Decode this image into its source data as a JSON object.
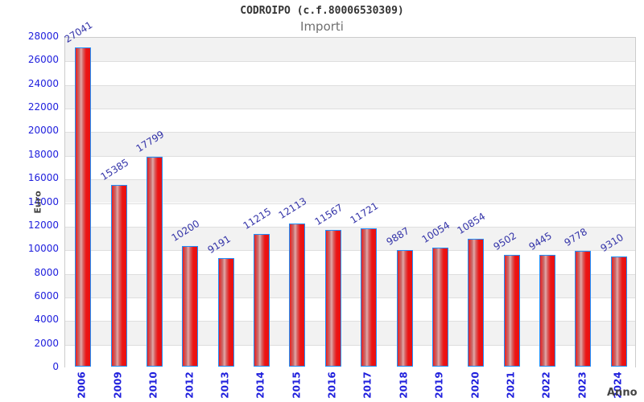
{
  "chart_data": {
    "type": "bar",
    "title": "CODROIPO (c.f.80006530309)",
    "subtitle": "Importi",
    "xlabel": "Anno",
    "ylabel": "Euro",
    "categories": [
      "2006",
      "2009",
      "2010",
      "2012",
      "2013",
      "2014",
      "2015",
      "2016",
      "2017",
      "2018",
      "2019",
      "2020",
      "2021",
      "2022",
      "2023",
      "2024"
    ],
    "values": [
      27041,
      15385,
      17799,
      10200,
      9191,
      11215,
      12113,
      11567,
      11721,
      9887,
      10054,
      10854,
      9502,
      9445,
      9778,
      9310
    ],
    "ylim": [
      0,
      28000
    ],
    "ytick_step": 2000,
    "grid": "horizontal alternating bands",
    "legend": "none",
    "colors": {
      "bar_fill": "#ee1515",
      "bar_highlight": "#e3a8a8",
      "bar_border": "#1e90ff",
      "axis_tick_label": "#2020dd",
      "value_label": "#3333a8",
      "axis_title": "#444444",
      "title": "#333333",
      "subtitle": "#707070",
      "band_gray": "#f2f2f2",
      "band_white": "#ffffff",
      "gridline": "#dedede",
      "plot_border": "#cccccc"
    }
  }
}
